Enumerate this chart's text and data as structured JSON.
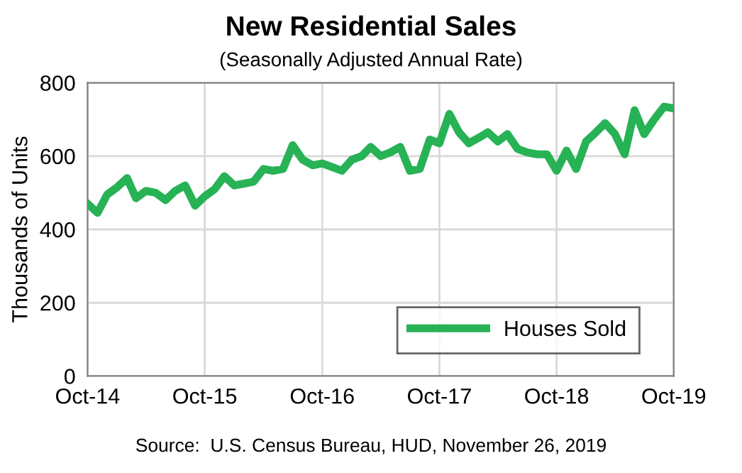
{
  "chart_data": {
    "type": "line",
    "title": "New Residential Sales",
    "subtitle": "(Seasonally Adjusted Annual Rate)",
    "ylabel": "Thousands of Units",
    "annotations": [
      "Source:  U.S. Census Bureau, HUD, November 26, 2019"
    ],
    "x": [
      "2014-10",
      "2014-11",
      "2014-12",
      "2015-01",
      "2015-02",
      "2015-03",
      "2015-04",
      "2015-05",
      "2015-06",
      "2015-07",
      "2015-08",
      "2015-09",
      "2015-10",
      "2015-11",
      "2015-12",
      "2016-01",
      "2016-02",
      "2016-03",
      "2016-04",
      "2016-05",
      "2016-06",
      "2016-07",
      "2016-08",
      "2016-09",
      "2016-10",
      "2016-11",
      "2016-12",
      "2017-01",
      "2017-02",
      "2017-03",
      "2017-04",
      "2017-05",
      "2017-06",
      "2017-07",
      "2017-08",
      "2017-09",
      "2017-10",
      "2017-11",
      "2017-12",
      "2018-01",
      "2018-02",
      "2018-03",
      "2018-04",
      "2018-05",
      "2018-06",
      "2018-07",
      "2018-08",
      "2018-09",
      "2018-10",
      "2018-11",
      "2018-12",
      "2019-01",
      "2019-02",
      "2019-03",
      "2019-04",
      "2019-05",
      "2019-06",
      "2019-07",
      "2019-08",
      "2019-09",
      "2019-10"
    ],
    "series": [
      {
        "name": "Houses Sold",
        "color": "#27b255",
        "values": [
          470,
          445,
          495,
          515,
          540,
          485,
          505,
          500,
          480,
          505,
          520,
          465,
          490,
          510,
          545,
          520,
          525,
          530,
          565,
          560,
          565,
          630,
          590,
          575,
          580,
          570,
          560,
          590,
          600,
          625,
          600,
          610,
          625,
          560,
          565,
          645,
          635,
          715,
          665,
          635,
          650,
          665,
          640,
          660,
          620,
          610,
          605,
          605,
          560,
          615,
          565,
          640,
          665,
          690,
          660,
          605,
          725,
          660,
          700,
          735,
          730
        ]
      }
    ],
    "xlim": [
      "2014-10",
      "2019-10"
    ],
    "xticks": [
      {
        "value": "2014-10",
        "label": "Oct-14"
      },
      {
        "value": "2015-10",
        "label": "Oct-15"
      },
      {
        "value": "2016-10",
        "label": "Oct-16"
      },
      {
        "value": "2017-10",
        "label": "Oct-17"
      },
      {
        "value": "2018-10",
        "label": "Oct-18"
      },
      {
        "value": "2019-10",
        "label": "Oct-19"
      }
    ],
    "ylim": [
      0,
      800
    ],
    "yticks": [
      0,
      200,
      400,
      600,
      800
    ],
    "grid": true,
    "legend": "bottom right",
    "marker": "none",
    "line_style": "solid"
  }
}
